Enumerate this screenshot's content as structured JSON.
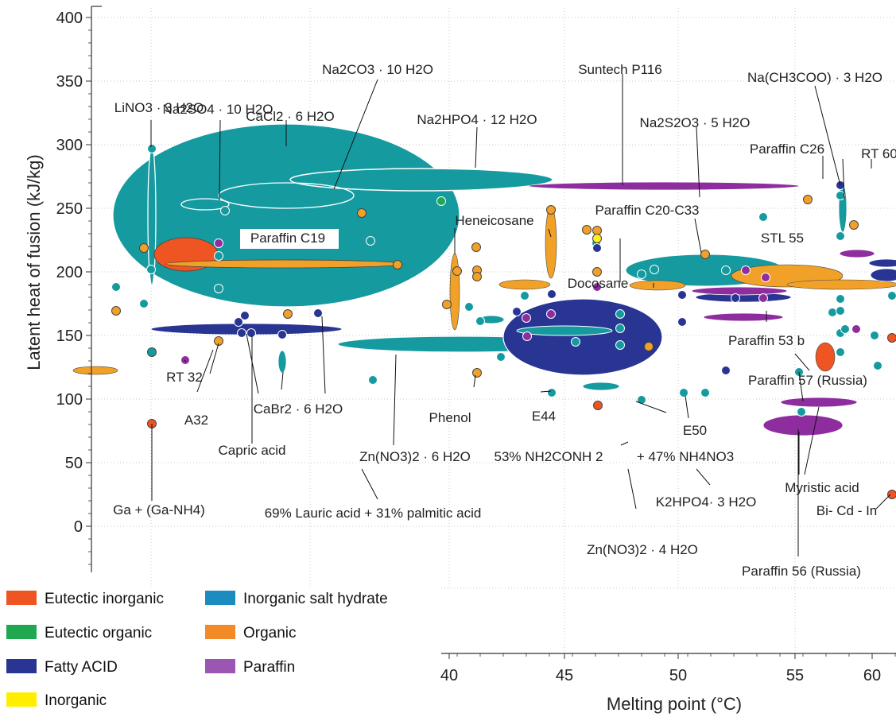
{
  "chart_data": {
    "type": "scatter",
    "title": "",
    "xlabel": "Melting point (°C)",
    "ylabel": "Latent heat of fusion (kJ/kg)",
    "ylim": [
      -40,
      405
    ],
    "yticks": [
      "400",
      "350",
      "300",
      "250",
      "200",
      "150",
      "100",
      "50",
      "0"
    ],
    "xticks": [
      "40",
      "45",
      "50",
      "55",
      "60"
    ],
    "xlim_visible": [
      39.6,
      61
    ],
    "grid": true,
    "colors": {
      "eutectic_inorganic": "#EE5522",
      "eutectic_organic": "#1FA84F",
      "fatty_acid": "#283593",
      "inorganic": "#FFEE22",
      "inorganic_salt_hydrate": "#159AA0",
      "organic": "#F2A128",
      "paraffin": "#8E2E9E"
    },
    "legend": [
      {
        "label": "Eutectic inorganic",
        "color": "#EE5522"
      },
      {
        "label": "Inorganic salt hydrate",
        "color": "#1C8CC0"
      },
      {
        "label": "Eutectic organic",
        "color": "#1FA84F"
      },
      {
        "label": "Organic",
        "color": "#F28A28"
      },
      {
        "label": "Fatty ACID",
        "color": "#283593"
      },
      {
        "label": "Paraffin",
        "color": "#9B55B3"
      },
      {
        "label": "Inorganic",
        "color": "#FFEE00"
      }
    ],
    "annotations": [
      "Na2SO4 · 10 H2O",
      "Na2CO3 · 10 H2O",
      "LiNO3 · 3 H2O",
      "CaCl2 · 6 H2O",
      "Na2HPO4 · 12 H2O",
      "Suntech P116",
      "Na(CH3COO) · 3 H2O",
      "Na2S2O3 · 5 H2O",
      "Paraffin C26",
      "RT 60",
      "Heneicosane",
      "Paraffin C20-C33",
      "Paraffin C19",
      "STL 55",
      "Docosane",
      "Paraffin 53 b",
      "Paraffin 57 (Russia)",
      "RT 32",
      "A32",
      "CaBr2 · 6 H2O",
      "Phenol",
      "E44",
      "E50",
      "Capric acid",
      "Zn(NO3)2 · 6 H2O",
      "53% NH2CONH 2",
      "+ 47% NH4NO3",
      "K2HPO4· 3 H2O",
      "Myristic acid",
      "Ga + (Ga-NH4)",
      "69% Lauric acid + 31% palmitic acid",
      "Bi- Cd - In",
      "Zn(NO3)2 · 4 H2O",
      "Paraffin 56 (Russia)"
    ]
  }
}
